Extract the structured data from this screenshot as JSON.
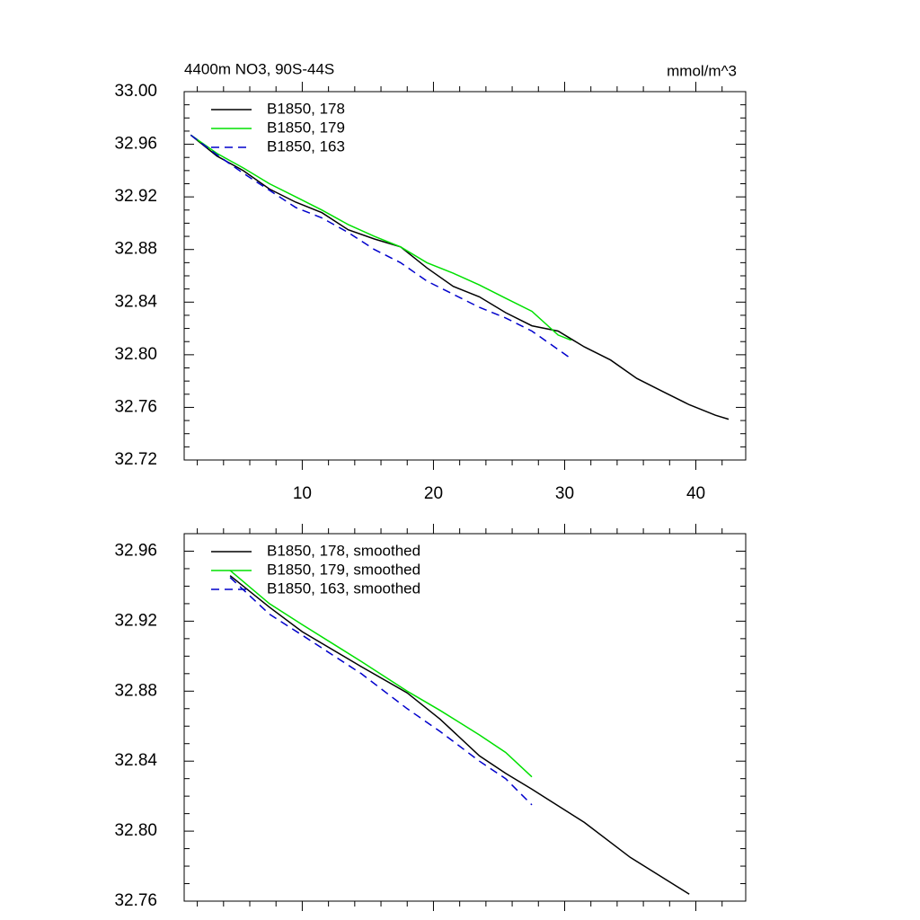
{
  "chart_data": [
    {
      "type": "line",
      "title": "4400m NO3, 90S-44S",
      "units": "mmol/m^3",
      "x": [
        1.5,
        3.5,
        5.5,
        7.5,
        9.5,
        11.5,
        13.5,
        15.5,
        17.5,
        19.5,
        21.5,
        23.5,
        25.5,
        27.5,
        29.5,
        30.5,
        31.5,
        33.5,
        35.5,
        37.5,
        39.5,
        41.5,
        42.5
      ],
      "series": [
        {
          "name": "B1850, 178",
          "color": "#000000",
          "line_style": "solid",
          "values": [
            32.967,
            32.951,
            32.94,
            32.926,
            32.916,
            32.908,
            32.895,
            32.888,
            32.882,
            32.866,
            32.852,
            32.844,
            32.832,
            32.822,
            32.818,
            32.812,
            32.806,
            32.796,
            32.782,
            32.772,
            32.762,
            32.754,
            32.751
          ]
        },
        {
          "name": "B1850, 179",
          "color": "#00e000",
          "line_style": "solid",
          "values": [
            32.967,
            32.953,
            32.942,
            32.93,
            32.92,
            32.91,
            32.899,
            32.89,
            32.882,
            32.87,
            32.862,
            32.853,
            32.843,
            32.833,
            32.815,
            32.811,
            null,
            null,
            null,
            null,
            null,
            null,
            null
          ]
        },
        {
          "name": "B1850, 163",
          "color": "#0000cc",
          "line_style": "dashed",
          "values": [
            32.967,
            32.952,
            32.938,
            32.925,
            32.912,
            32.904,
            32.893,
            32.88,
            32.87,
            32.856,
            32.846,
            32.836,
            32.828,
            32.818,
            32.804,
            32.797,
            null,
            null,
            null,
            null,
            null,
            null,
            null
          ]
        }
      ],
      "xlim": [
        1,
        43.8
      ],
      "xticks": [
        10,
        20,
        30,
        40
      ],
      "ylim": [
        32.72,
        33.0
      ],
      "yticks": [
        32.72,
        32.76,
        {
          "value": 32.8,
          "label": "32.80"
        },
        32.84,
        32.88,
        32.92,
        32.96,
        {
          "value": 33.0,
          "label": "33.00"
        }
      ],
      "legend": "upper left"
    },
    {
      "type": "line",
      "x": [
        4.5,
        7.5,
        10,
        14.5,
        18,
        20.5,
        23.5,
        25.5,
        27.5,
        31.5,
        35,
        39.5
      ],
      "series": [
        {
          "name": "B1850, 178, smoothed",
          "color": "#000000",
          "line_style": "solid",
          "values": [
            32.946,
            32.928,
            32.914,
            32.894,
            32.879,
            32.864,
            32.843,
            32.833,
            32.824,
            32.805,
            32.785,
            32.764
          ]
        },
        {
          "name": "B1850, 179, smoothed",
          "color": "#00e000",
          "line_style": "solid",
          "values": [
            32.949,
            32.93,
            32.918,
            32.897,
            32.88,
            32.869,
            32.855,
            32.845,
            32.831,
            null,
            null,
            null
          ]
        },
        {
          "name": "B1850, 163, smoothed",
          "color": "#0000cc",
          "line_style": "dashed",
          "values": [
            32.945,
            32.924,
            32.912,
            32.89,
            32.87,
            32.857,
            32.84,
            32.83,
            32.815,
            null,
            null,
            null
          ]
        }
      ],
      "xlim": [
        1,
        43.8
      ],
      "xticks": [
        10,
        20,
        30,
        40
      ],
      "ylim": [
        32.76,
        32.97
      ],
      "yticks": [
        32.76,
        {
          "value": 32.8,
          "label": "32.80"
        },
        32.84,
        32.88,
        32.92,
        32.96
      ],
      "legend": "upper left"
    }
  ]
}
